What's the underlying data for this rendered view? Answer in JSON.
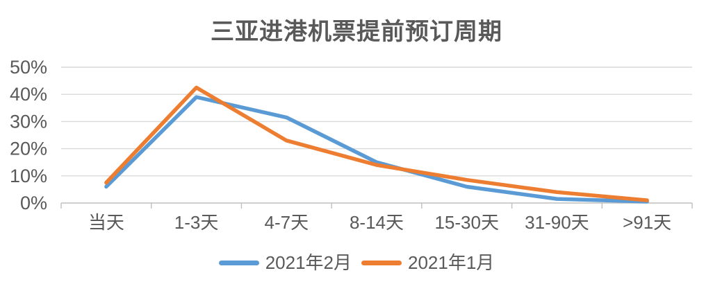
{
  "title": "三亚进港机票提前预订周期",
  "chart_data": {
    "type": "line",
    "title": "三亚进港机票提前预订周期",
    "categories": [
      "当天",
      "1-3天",
      "4-7天",
      "8-14天",
      "15-30天",
      "31-90天",
      ">91天"
    ],
    "series": [
      {
        "name": "2021年2月",
        "color": "#5B9BD5",
        "values": [
          6,
          39,
          31.5,
          15,
          6,
          1.5,
          0.5
        ]
      },
      {
        "name": "2021年1月",
        "color": "#ED7D31",
        "values": [
          7.5,
          42.5,
          23,
          14,
          8.5,
          4,
          1
        ]
      }
    ],
    "xlabel": "",
    "ylabel": "",
    "ylim": [
      0,
      50
    ],
    "ytick_step": 10,
    "ytick_labels": [
      "0%",
      "10%",
      "20%",
      "30%",
      "40%",
      "50%"
    ],
    "grid": true,
    "legend_position": "bottom",
    "styles": {
      "title_color": "#595959",
      "axis_label_color": "#595959",
      "gridline_color": "#D9D9D9",
      "axis_line_color": "#BFBFBF",
      "background": "#FFFFFF"
    }
  }
}
